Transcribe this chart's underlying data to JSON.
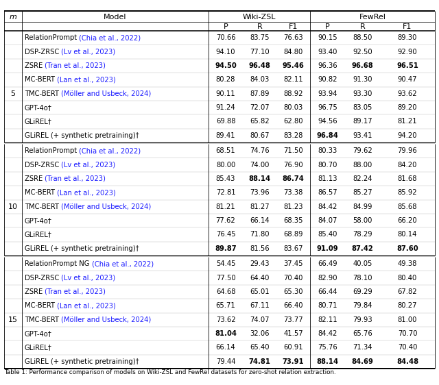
{
  "caption": "Table 1: Performance comparison of models on Wiki-ZSL and FewRel datasets for zero-shot relation extraction.",
  "groups": [
    {
      "m": "5",
      "rows": [
        {
          "model_plain": "RelationPrompt",
          "model_cite": "(Chia et al., 2022)",
          "values": [
            "70.66",
            "83.75",
            "76.63",
            "90.15",
            "88.50",
            "89.30"
          ],
          "bold": [
            false,
            false,
            false,
            false,
            false,
            false
          ]
        },
        {
          "model_plain": "DSP-ZRSC",
          "model_cite": "(Lv et al., 2023)",
          "values": [
            "94.10",
            "77.10",
            "84.80",
            "93.40",
            "92.50",
            "92.90"
          ],
          "bold": [
            false,
            false,
            false,
            false,
            false,
            false
          ]
        },
        {
          "model_plain": "ZSRE",
          "model_cite": "(Tran et al., 2023)",
          "values": [
            "94.50",
            "96.48",
            "95.46",
            "96.36",
            "96.68",
            "96.51"
          ],
          "bold": [
            true,
            true,
            true,
            false,
            true,
            true
          ]
        },
        {
          "model_plain": "MC-BERT",
          "model_cite": "(Lan et al., 2023)",
          "values": [
            "80.28",
            "84.03",
            "82.11",
            "90.82",
            "91.30",
            "90.47"
          ],
          "bold": [
            false,
            false,
            false,
            false,
            false,
            false
          ]
        },
        {
          "model_plain": "TMC-BERT",
          "model_cite": "(Möller and Usbeck, 2024)",
          "values": [
            "90.11",
            "87.89",
            "88.92",
            "93.94",
            "93.30",
            "93.62"
          ],
          "bold": [
            false,
            false,
            false,
            false,
            false,
            false
          ]
        },
        {
          "model_plain": "GPT-4o†",
          "model_cite": "",
          "values": [
            "91.24",
            "72.07",
            "80.03",
            "96.75",
            "83.05",
            "89.20"
          ],
          "bold": [
            false,
            false,
            false,
            false,
            false,
            false
          ]
        },
        {
          "model_plain": "GLiREL†",
          "model_cite": "",
          "values": [
            "69.88",
            "65.82",
            "62.80",
            "94.56",
            "89.17",
            "81.21"
          ],
          "bold": [
            false,
            false,
            false,
            false,
            false,
            false
          ]
        },
        {
          "model_plain": "GLiREL (+ synthetic pretraining)†",
          "model_cite": "",
          "values": [
            "89.41",
            "80.67",
            "83.28",
            "96.84",
            "93.41",
            "94.20"
          ],
          "bold": [
            false,
            false,
            false,
            true,
            false,
            false
          ]
        }
      ]
    },
    {
      "m": "10",
      "rows": [
        {
          "model_plain": "RelationPrompt",
          "model_cite": "(Chia et al., 2022)",
          "values": [
            "68.51",
            "74.76",
            "71.50",
            "80.33",
            "79.62",
            "79.96"
          ],
          "bold": [
            false,
            false,
            false,
            false,
            false,
            false
          ]
        },
        {
          "model_plain": "DSP-ZRSC",
          "model_cite": "(Lv et al., 2023)",
          "values": [
            "80.00",
            "74.00",
            "76.90",
            "80.70",
            "88.00",
            "84.20"
          ],
          "bold": [
            false,
            false,
            false,
            false,
            false,
            false
          ]
        },
        {
          "model_plain": "ZSRE",
          "model_cite": "(Tran et al., 2023)",
          "values": [
            "85.43",
            "88.14",
            "86.74",
            "81.13",
            "82.24",
            "81.68"
          ],
          "bold": [
            false,
            true,
            true,
            false,
            false,
            false
          ]
        },
        {
          "model_plain": "MC-BERT",
          "model_cite": "(Lan et al., 2023)",
          "values": [
            "72.81",
            "73.96",
            "73.38",
            "86.57",
            "85.27",
            "85.92"
          ],
          "bold": [
            false,
            false,
            false,
            false,
            false,
            false
          ]
        },
        {
          "model_plain": "TMC-BERT",
          "model_cite": "(Möller and Usbeck, 2024)",
          "values": [
            "81.21",
            "81.27",
            "81.23",
            "84.42",
            "84.99",
            "85.68"
          ],
          "bold": [
            false,
            false,
            false,
            false,
            false,
            false
          ]
        },
        {
          "model_plain": "GPT-4o†",
          "model_cite": "",
          "values": [
            "77.62",
            "66.14",
            "68.35",
            "84.07",
            "58.00",
            "66.20"
          ],
          "bold": [
            false,
            false,
            false,
            false,
            false,
            false
          ]
        },
        {
          "model_plain": "GLiREL†",
          "model_cite": "",
          "values": [
            "76.45",
            "71.80",
            "68.89",
            "85.40",
            "78.29",
            "80.14"
          ],
          "bold": [
            false,
            false,
            false,
            false,
            false,
            false
          ]
        },
        {
          "model_plain": "GLiREL (+ synthetic pretraining)†",
          "model_cite": "",
          "values": [
            "89.87",
            "81.56",
            "83.67",
            "91.09",
            "87.42",
            "87.60"
          ],
          "bold": [
            true,
            false,
            false,
            true,
            true,
            true
          ]
        }
      ]
    },
    {
      "m": "15",
      "rows": [
        {
          "model_plain": "RelationPrompt NG",
          "model_cite": "(Chia et al., 2022)",
          "values": [
            "54.45",
            "29.43",
            "37.45",
            "66.49",
            "40.05",
            "49.38"
          ],
          "bold": [
            false,
            false,
            false,
            false,
            false,
            false
          ]
        },
        {
          "model_plain": "DSP-ZRSC",
          "model_cite": "(Lv et al., 2023)",
          "values": [
            "77.50",
            "64.40",
            "70.40",
            "82.90",
            "78.10",
            "80.40"
          ],
          "bold": [
            false,
            false,
            false,
            false,
            false,
            false
          ]
        },
        {
          "model_plain": "ZSRE",
          "model_cite": "(Tran et al., 2023)",
          "values": [
            "64.68",
            "65.01",
            "65.30",
            "66.44",
            "69.29",
            "67.82"
          ],
          "bold": [
            false,
            false,
            false,
            false,
            false,
            false
          ]
        },
        {
          "model_plain": "MC-BERT",
          "model_cite": "(Lan et al., 2023)",
          "values": [
            "65.71",
            "67.11",
            "66.40",
            "80.71",
            "79.84",
            "80.27"
          ],
          "bold": [
            false,
            false,
            false,
            false,
            false,
            false
          ]
        },
        {
          "model_plain": "TMC-BERT",
          "model_cite": "(Möller and Usbeck, 2024)",
          "values": [
            "73.62",
            "74.07",
            "73.77",
            "82.11",
            "79.93",
            "81.00"
          ],
          "bold": [
            false,
            false,
            false,
            false,
            false,
            false
          ]
        },
        {
          "model_plain": "GPT-4o†",
          "model_cite": "",
          "values": [
            "81.04",
            "32.06",
            "41.57",
            "84.42",
            "65.76",
            "70.70"
          ],
          "bold": [
            true,
            false,
            false,
            false,
            false,
            false
          ]
        },
        {
          "model_plain": "GLiREL†",
          "model_cite": "",
          "values": [
            "66.14",
            "65.40",
            "60.91",
            "75.76",
            "71.34",
            "70.40"
          ],
          "bold": [
            false,
            false,
            false,
            false,
            false,
            false
          ]
        },
        {
          "model_plain": "GLiREL (+ synthetic pretraining)†",
          "model_cite": "",
          "values": [
            "79.44",
            "74.81",
            "73.91",
            "88.14",
            "84.69",
            "84.48"
          ],
          "bold": [
            false,
            true,
            true,
            true,
            true,
            true
          ]
        }
      ]
    }
  ],
  "cite_color": "#1a1aff",
  "bg_color": "#FFFFFF"
}
